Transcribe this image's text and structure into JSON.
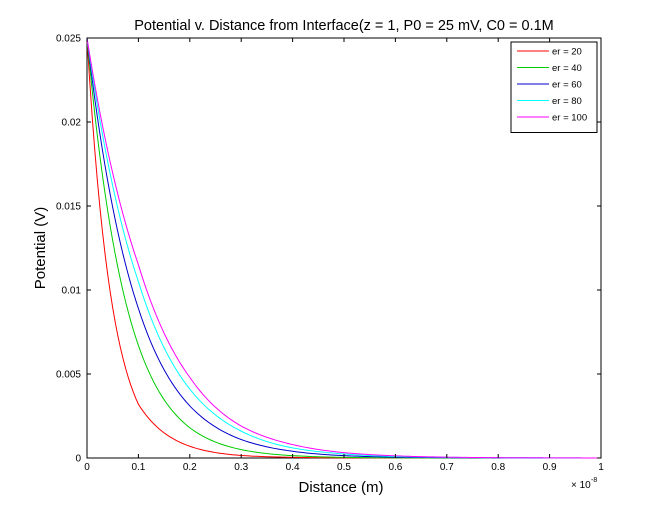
{
  "chart_data": {
    "type": "line",
    "title": "Potential v. Distance from Interface(z = 1, P0 = 25 mV, C0 = 0.1M",
    "xlabel": "Distance (m)",
    "ylabel": "Potential (V)",
    "x_multiplier_label": "× 10",
    "x_multiplier_exponent": "-8",
    "xlim": [
      0,
      1e-08
    ],
    "ylim": [
      0,
      0.025
    ],
    "xticks": [
      0,
      0.1,
      0.2,
      0.3,
      0.4,
      0.5,
      0.6,
      0.7,
      0.8,
      0.9,
      1
    ],
    "xtick_labels": [
      "0",
      "0.1",
      "0.2",
      "0.3",
      "0.4",
      "0.5",
      "0.6",
      "0.7",
      "0.8",
      "0.9",
      "1"
    ],
    "yticks": [
      0,
      0.005,
      0.01,
      0.015,
      0.02,
      0.025
    ],
    "ytick_labels": [
      "0",
      "0.005",
      "0.01",
      "0.015",
      "0.02",
      "0.025"
    ],
    "grid": false,
    "legend_position": "top-right",
    "x": [
      0,
      0.1,
      0.2,
      0.3,
      0.4,
      0.5,
      0.6,
      0.7,
      0.8,
      0.9,
      1.0
    ],
    "x_units_note": "",
    "series": [
      {
        "name": "er = 20",
        "color": "#ff0000",
        "values": [
          0.025,
          0.0032,
          0.0007,
          0.00015,
          4e-05,
          1e-05,
          0,
          0,
          0,
          0,
          0
        ]
      },
      {
        "name": "er = 40",
        "color": "#00cc00",
        "values": [
          0.025,
          0.0067,
          0.0018,
          0.0005,
          0.00014,
          4e-05,
          1e-05,
          0,
          0,
          0,
          0
        ]
      },
      {
        "name": "er = 60",
        "color": "#0000cc",
        "values": [
          0.025,
          0.0089,
          0.0031,
          0.0011,
          0.0004,
          0.00014,
          5e-05,
          2e-05,
          1e-05,
          0,
          0
        ]
      },
      {
        "name": "er = 80",
        "color": "#00ffff",
        "values": [
          0.025,
          0.0105,
          0.0041,
          0.0016,
          0.0006,
          0.00024,
          9e-05,
          4e-05,
          2e-05,
          1e-05,
          0
        ]
      },
      {
        "name": "er = 100",
        "color": "#ff00ff",
        "values": [
          0.025,
          0.0115,
          0.0048,
          0.0019,
          0.0008,
          0.00032,
          0.00013,
          5e-05,
          2e-05,
          1e-05,
          0
        ]
      }
    ]
  }
}
